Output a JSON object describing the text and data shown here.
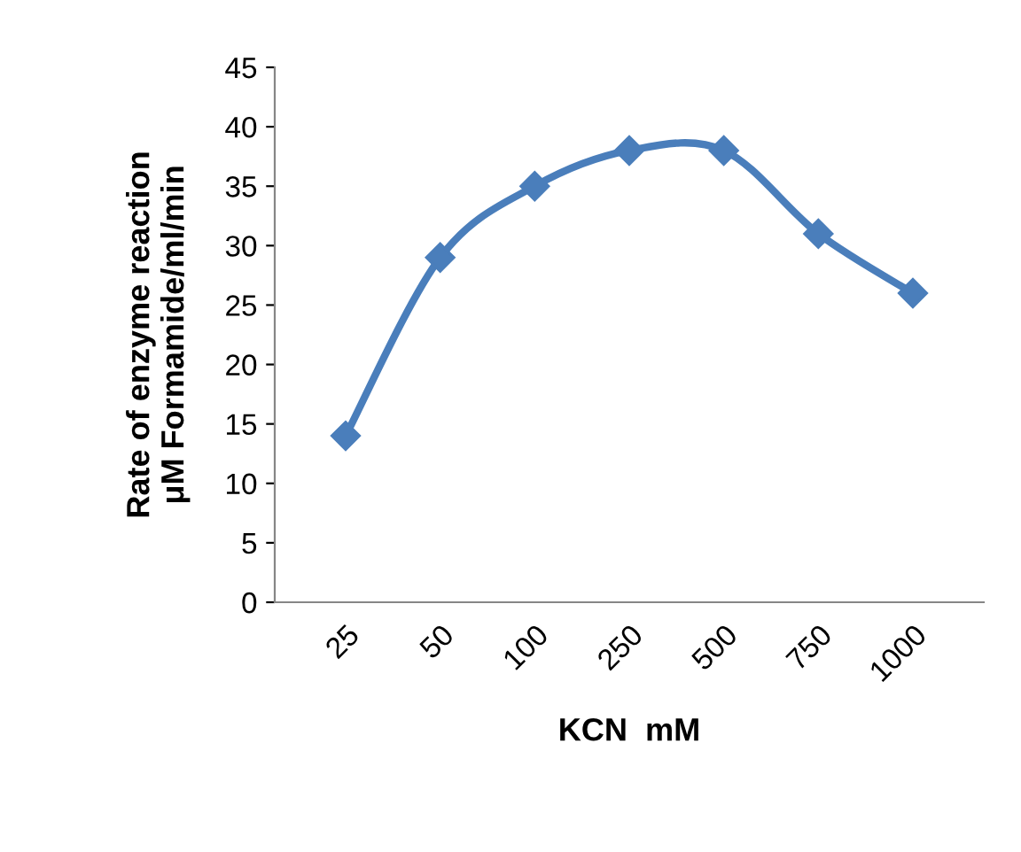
{
  "chart_data": {
    "type": "line",
    "xlabel": "KCN  mM",
    "ylabel": "Rate of enzyme reaction\nμM Formamide/ml/min",
    "categories": [
      "25",
      "50",
      "100",
      "250",
      "500",
      "750",
      "1000"
    ],
    "series": [
      {
        "color": "#4a7ebb",
        "values": [
          14,
          29,
          35,
          38,
          38,
          31,
          26
        ]
      }
    ],
    "ylim": [
      0,
      45
    ],
    "yticks": [
      0,
      5,
      10,
      15,
      20,
      25,
      30,
      35,
      40,
      45
    ],
    "marker": "diamond",
    "line_style": "solid",
    "grid": false,
    "legend": false
  }
}
